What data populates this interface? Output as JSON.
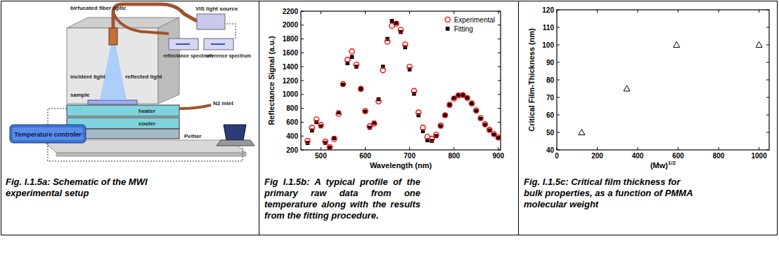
{
  "schematic": {
    "labels": {
      "fiber": "birfucated fiber optic",
      "source": "VIS light source",
      "incident": "incident light",
      "reflected": "reflected light",
      "sample": "sample",
      "heater": "heater",
      "cooler": "cooler",
      "reflectance": "reflectance spectrum",
      "reference": "reference spectrum",
      "n2": "N2 inlet",
      "peltier": "Peltier",
      "controller": "Temperature controler"
    },
    "caption": {
      "label": "Fig. I.1.5a:",
      "text": "Schematic of the MWI experimental setup"
    }
  },
  "chart_data": [
    {
      "type": "scatter",
      "xlabel": "Wavelength (nm)",
      "ylabel": "Reflectance Signal (a.u.)",
      "x": [
        470,
        480,
        490,
        500,
        510,
        520,
        530,
        540,
        550,
        560,
        570,
        580,
        590,
        600,
        610,
        620,
        630,
        640,
        650,
        660,
        670,
        680,
        690,
        700,
        710,
        720,
        730,
        740,
        750,
        760,
        770,
        780,
        790,
        800,
        810,
        820,
        830,
        840,
        850,
        860,
        870,
        880,
        890,
        900
      ],
      "series": [
        {
          "name": "Experimental",
          "color": "#ff0000",
          "marker": "circle",
          "values": [
            330,
            520,
            640,
            560,
            320,
            240,
            360,
            720,
            1150,
            1500,
            1620,
            1430,
            1080,
            760,
            540,
            580,
            900,
            1350,
            1760,
            1990,
            2020,
            1930,
            1720,
            1400,
            1050,
            740,
            520,
            390,
            360,
            420,
            550,
            700,
            850,
            940,
            985,
            990,
            950,
            870,
            770,
            660,
            570,
            490,
            430,
            380
          ]
        },
        {
          "name": "Fitting",
          "color": "#000000",
          "marker": "square",
          "values": [
            300,
            480,
            600,
            540,
            300,
            230,
            370,
            740,
            1140,
            1450,
            1540,
            1400,
            1080,
            750,
            520,
            590,
            930,
            1400,
            1800,
            2060,
            2030,
            1900,
            1680,
            1360,
            1010,
            700,
            470,
            340,
            330,
            400,
            540,
            700,
            850,
            950,
            990,
            990,
            950,
            870,
            760,
            650,
            560,
            480,
            420,
            370
          ]
        }
      ],
      "xlim": [
        455,
        905
      ],
      "ylim": [
        200,
        2200
      ],
      "xticks": [
        500,
        600,
        700,
        800,
        900
      ],
      "yticks": [
        200,
        400,
        600,
        800,
        1000,
        1200,
        1400,
        1600,
        1800,
        2000,
        2200
      ],
      "legend": "top-right",
      "caption": {
        "label": "Fig I.1.5b:",
        "text": "A typical profile of the primary raw data from one temperature along with the results from the fitting procedure."
      }
    },
    {
      "type": "scatter",
      "xlabel": "(Mw)",
      "xlabel_superscript": "1/2",
      "ylabel": "Critical Film-Thickness (nm)",
      "x": [
        123,
        346,
        592,
        1000
      ],
      "values": [
        50,
        75,
        100,
        100
      ],
      "color": "#000000",
      "marker": "triangle",
      "xlim": [
        0,
        1050
      ],
      "ylim": [
        40,
        120
      ],
      "xticks": [
        0,
        200,
        400,
        600,
        800,
        1000
      ],
      "yticks": [
        40,
        50,
        60,
        70,
        80,
        90,
        100,
        110,
        120
      ],
      "caption": {
        "label": "Fig. I.1.5c:",
        "text": "Critical film thickness for bulk properties, as a function of PMMA molecular weight"
      }
    }
  ]
}
